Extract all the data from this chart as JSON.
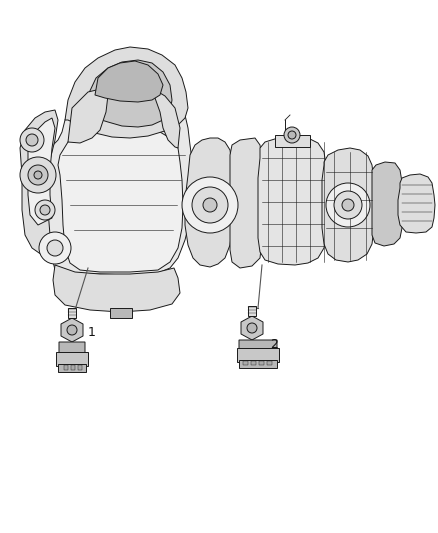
{
  "background_color": "#ffffff",
  "fig_width": 4.38,
  "fig_height": 5.33,
  "dpi": 100,
  "label_1": "1",
  "label_2": "2",
  "text_color": "#111111",
  "ec": "#1a1a1a",
  "lw_main": 0.7,
  "lw_detail": 0.4,
  "fc_light": "#f0f0f0",
  "fc_mid": "#dedede",
  "fc_dark": "#c8c8c8",
  "fc_darker": "#b8b8b8",
  "engine_color": "#e8e8e8",
  "trans_color": "#e4e4e4"
}
